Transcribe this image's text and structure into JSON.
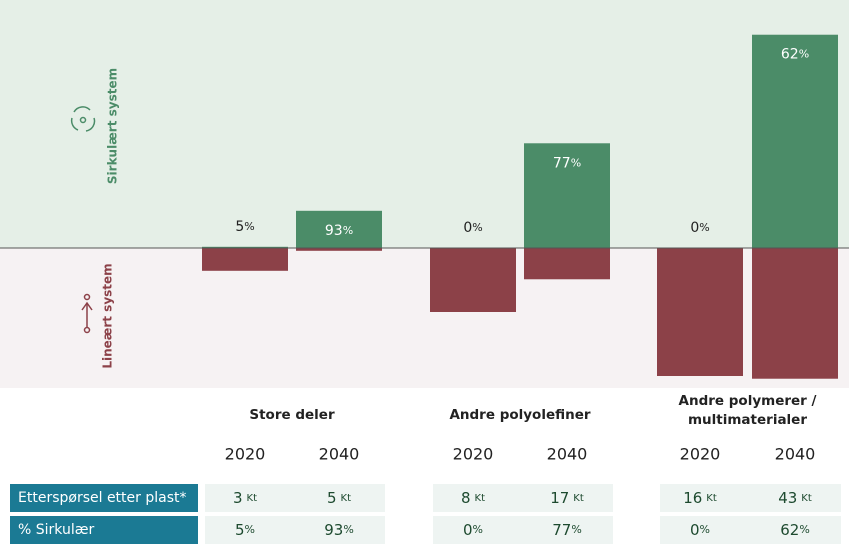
{
  "chart_data": {
    "type": "diverging-bar",
    "upper_label": "Sirkulært system",
    "lower_label": "Lineært system",
    "upper_color": "#4b8c68",
    "lower_color": "#8c4148",
    "ylim": [
      -17.5,
      31
    ],
    "groups": [
      {
        "name": "Store deler",
        "years": [
          "2020",
          "2040"
        ],
        "demand": [
          3,
          5
        ],
        "circular_pct": [
          5,
          93
        ]
      },
      {
        "name": "Andre polyolefiner",
        "years": [
          "2020",
          "2040"
        ],
        "demand": [
          8,
          17
        ],
        "circular_pct": [
          0,
          77
        ]
      },
      {
        "name": "Andre polymerer / multimaterialer",
        "years": [
          "2020",
          "2040"
        ],
        "demand": [
          16,
          43
        ],
        "circular_pct": [
          0,
          62
        ]
      }
    ],
    "demand_label": "Etterspørsel etter plast*",
    "pct_label": "% Sirkulær",
    "demand_unit": "Kt",
    "pct_unit": "%"
  }
}
